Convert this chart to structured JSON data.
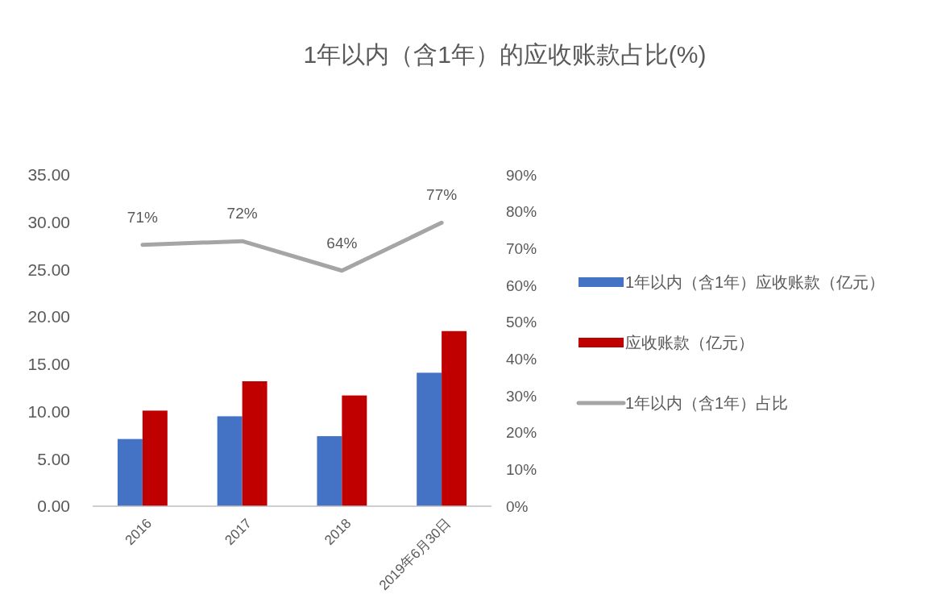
{
  "chart_data": {
    "type": "bar",
    "title": "1年以内（含1年）的应收账款占比(%)",
    "categories": [
      "2016",
      "2017",
      "2018",
      "2019年6月30日"
    ],
    "series": [
      {
        "name": "1年以内（含1年）应收账款（亿元）",
        "color": "#4472c4",
        "values": [
          7.1,
          9.5,
          7.4,
          14.1
        ]
      },
      {
        "name": "应收账款（亿元）",
        "color": "#c00000",
        "values": [
          10.1,
          13.2,
          11.7,
          18.5
        ]
      },
      {
        "name": "1年以内（含1年）占比",
        "color": "#a5a5a5",
        "type": "line",
        "axis": "y2",
        "values": [
          71,
          72,
          64,
          77
        ],
        "value_labels": [
          "71%",
          "72%",
          "64%",
          "77%"
        ]
      }
    ],
    "ylim": [
      0,
      35
    ],
    "yticks": [
      {
        "value": 0,
        "label": "0.00"
      },
      {
        "value": 5,
        "label": "5.00"
      },
      {
        "value": 10,
        "label": "10.00"
      },
      {
        "value": 15,
        "label": "15.00"
      },
      {
        "value": 20,
        "label": "20.00"
      },
      {
        "value": 25,
        "label": "25.00"
      },
      {
        "value": 30,
        "label": "30.00"
      },
      {
        "value": 35,
        "label": "35.00"
      }
    ],
    "y2lim": [
      0,
      90
    ],
    "y2ticks": [
      {
        "value": 0,
        "label": "0%"
      },
      {
        "value": 10,
        "label": "10%"
      },
      {
        "value": 20,
        "label": "20%"
      },
      {
        "value": 30,
        "label": "30%"
      },
      {
        "value": 40,
        "label": "40%"
      },
      {
        "value": 50,
        "label": "50%"
      },
      {
        "value": 60,
        "label": "60%"
      },
      {
        "value": 70,
        "label": "70%"
      },
      {
        "value": 80,
        "label": "80%"
      },
      {
        "value": 90,
        "label": "90%"
      }
    ],
    "legend": "right",
    "grid": false,
    "marker": "none",
    "line_style": "solid"
  }
}
